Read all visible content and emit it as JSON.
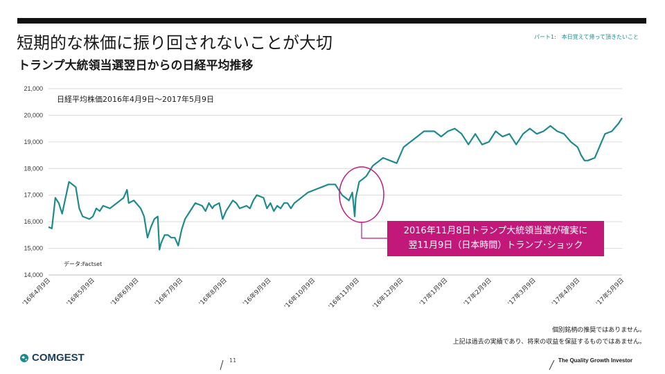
{
  "header": {
    "title": "短期的な株価に振り回されないことが大切",
    "subtitle": "トランプ大統領当選翌日からの日経平均推移",
    "part_label": "パート1:　本日覚えて帰って頂きたいこと"
  },
  "chart_data": {
    "type": "line",
    "series_caption": "日経平均株価2016年4月9日～2017年5月9日",
    "data_source": "データ:Factset",
    "ylim": [
      14000,
      21000
    ],
    "yticks": [
      "14,000",
      "15,000",
      "16,000",
      "17,000",
      "18,000",
      "19,000",
      "20,000",
      "21,000"
    ],
    "categories": [
      "'16年4月9日",
      "'16年5月9日",
      "'16年6月9日",
      "'16年7月9日",
      "'16年8月9日",
      "'16年9月9日",
      "'16年10月9日",
      "'16年11月9日",
      "'16年12月9日",
      "'17年1月9日",
      "'17年2月9日",
      "'17年3月9日",
      "'17年4月9日",
      "'17年5月9日"
    ],
    "grid": "horizontal",
    "series": [
      {
        "color": "#1f8a8c",
        "points": [
          [
            0.0,
            15800
          ],
          [
            0.1,
            15750
          ],
          [
            0.2,
            16900
          ],
          [
            0.3,
            16700
          ],
          [
            0.4,
            16300
          ],
          [
            0.5,
            16900
          ],
          [
            0.6,
            17500
          ],
          [
            0.7,
            17400
          ],
          [
            0.8,
            17300
          ],
          [
            0.9,
            16500
          ],
          [
            1.0,
            16200
          ],
          [
            1.2,
            16100
          ],
          [
            1.3,
            16200
          ],
          [
            1.4,
            16500
          ],
          [
            1.5,
            16400
          ],
          [
            1.6,
            16600
          ],
          [
            1.8,
            16500
          ],
          [
            2.0,
            16700
          ],
          [
            2.2,
            16900
          ],
          [
            2.3,
            17200
          ],
          [
            2.35,
            16700
          ],
          [
            2.5,
            16800
          ],
          [
            2.7,
            16500
          ],
          [
            2.8,
            16200
          ],
          [
            2.9,
            15400
          ],
          [
            3.0,
            15800
          ],
          [
            3.1,
            16100
          ],
          [
            3.2,
            16200
          ],
          [
            3.25,
            14950
          ],
          [
            3.3,
            15200
          ],
          [
            3.4,
            15500
          ],
          [
            3.5,
            15500
          ],
          [
            3.6,
            15400
          ],
          [
            3.7,
            15400
          ],
          [
            3.8,
            15100
          ],
          [
            3.9,
            15700
          ],
          [
            4.0,
            16100
          ],
          [
            4.2,
            16500
          ],
          [
            4.3,
            16700
          ],
          [
            4.5,
            16600
          ],
          [
            4.6,
            16400
          ],
          [
            4.7,
            16700
          ],
          [
            4.8,
            16500
          ],
          [
            4.85,
            16600
          ],
          [
            5.0,
            16700
          ],
          [
            5.1,
            16100
          ],
          [
            5.2,
            16400
          ],
          [
            5.4,
            16800
          ],
          [
            5.5,
            16700
          ],
          [
            5.6,
            16500
          ],
          [
            5.8,
            16600
          ],
          [
            5.9,
            16500
          ],
          [
            6.0,
            16800
          ],
          [
            6.1,
            17000
          ],
          [
            6.3,
            16900
          ],
          [
            6.4,
            16500
          ],
          [
            6.5,
            16700
          ],
          [
            6.6,
            16400
          ],
          [
            6.7,
            16600
          ],
          [
            6.8,
            16500
          ],
          [
            6.9,
            16700
          ],
          [
            7.0,
            16700
          ],
          [
            7.1,
            16500
          ],
          [
            7.2,
            16700
          ],
          [
            7.4,
            16900
          ],
          [
            7.5,
            17000
          ],
          [
            7.6,
            17100
          ],
          [
            7.8,
            17200
          ],
          [
            8.0,
            17300
          ],
          [
            8.2,
            17400
          ],
          [
            8.4,
            17400
          ],
          [
            8.6,
            17000
          ],
          [
            8.8,
            16800
          ],
          [
            8.9,
            17100
          ],
          [
            8.97,
            16200
          ],
          [
            9.0,
            16900
          ],
          [
            9.1,
            17500
          ],
          [
            9.3,
            17700
          ],
          [
            9.5,
            18100
          ],
          [
            9.7,
            18300
          ],
          [
            9.8,
            18400
          ],
          [
            10.0,
            18300
          ],
          [
            10.2,
            18200
          ],
          [
            10.4,
            18800
          ],
          [
            10.6,
            19000
          ],
          [
            10.8,
            19200
          ],
          [
            11.0,
            19400
          ],
          [
            11.3,
            19400
          ],
          [
            11.5,
            19200
          ],
          [
            11.7,
            19400
          ],
          [
            11.9,
            19500
          ],
          [
            12.1,
            19300
          ],
          [
            12.3,
            18900
          ],
          [
            12.5,
            19300
          ],
          [
            12.7,
            18900
          ],
          [
            12.9,
            19000
          ],
          [
            13.1,
            19400
          ],
          [
            13.3,
            19200
          ],
          [
            13.5,
            19300
          ],
          [
            13.7,
            18900
          ],
          [
            13.9,
            19300
          ],
          [
            14.1,
            19500
          ],
          [
            14.3,
            19300
          ],
          [
            14.5,
            19400
          ],
          [
            14.7,
            19600
          ],
          [
            14.9,
            19400
          ],
          [
            15.1,
            19300
          ],
          [
            15.3,
            19000
          ],
          [
            15.5,
            18800
          ],
          [
            15.6,
            18500
          ],
          [
            15.7,
            18300
          ],
          [
            15.8,
            18300
          ],
          [
            16.0,
            18400
          ],
          [
            16.2,
            19000
          ],
          [
            16.3,
            19300
          ],
          [
            16.5,
            19400
          ],
          [
            16.7,
            19700
          ],
          [
            16.8,
            19900
          ]
        ]
      }
    ]
  },
  "callout": {
    "line1": "2016年11月8日トランプ大統領当選が確実に",
    "line2": "翌11月9日（日本時間）トランプ･ショック"
  },
  "footer": {
    "disclaimer_line1": "個別銘柄の推奨ではありません。",
    "disclaimer_line2": "上記は過去の実績であり、将来の収益を保証するものではあません。",
    "logo_text": "COMGEST",
    "page_number": "11",
    "tagline": "The Quality Growth Investor"
  },
  "colors": {
    "series": "#1f8a8c",
    "callout": "#c2187a",
    "accent": "#1f8c8f"
  }
}
